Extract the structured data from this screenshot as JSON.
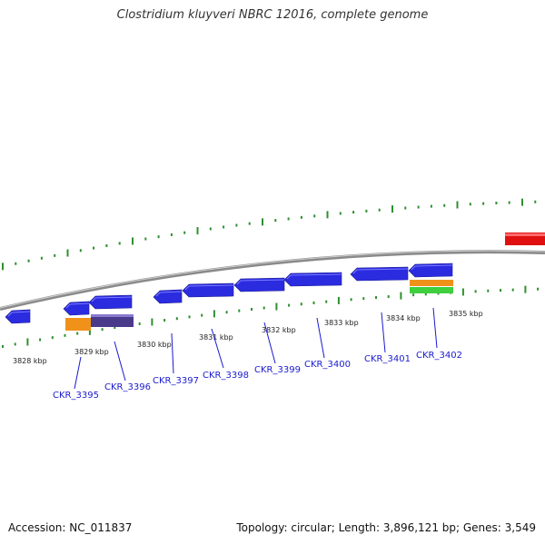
{
  "title": "Clostridium kluyveri NBRC 12016, complete genome",
  "footer": {
    "accession": "Accession: NC_011837",
    "summary": "Topology: circular; Length: 3,896,121 bp; Genes: 3,549"
  },
  "colors": {
    "backbone": "#888888",
    "tick": "#2f8f2f",
    "gene_cds": "#2b2be0",
    "gene_red": "#e01010",
    "orange": "#f0921a",
    "purple": "#4a3a8a",
    "green": "#3fcf3f",
    "label": "#1a1ad0"
  },
  "scale_labels": [
    "3828 kbp",
    "3829 kbp",
    "3830 kbp",
    "3831 kbp",
    "3832 kbp",
    "3833 kbp",
    "3834 kbp",
    "3835 kbp"
  ],
  "gene_labels": [
    "CKR_3395",
    "CKR_3396",
    "CKR_3397",
    "CKR_3398",
    "CKR_3399",
    "CKR_3400",
    "CKR_3401",
    "CKR_3402"
  ]
}
